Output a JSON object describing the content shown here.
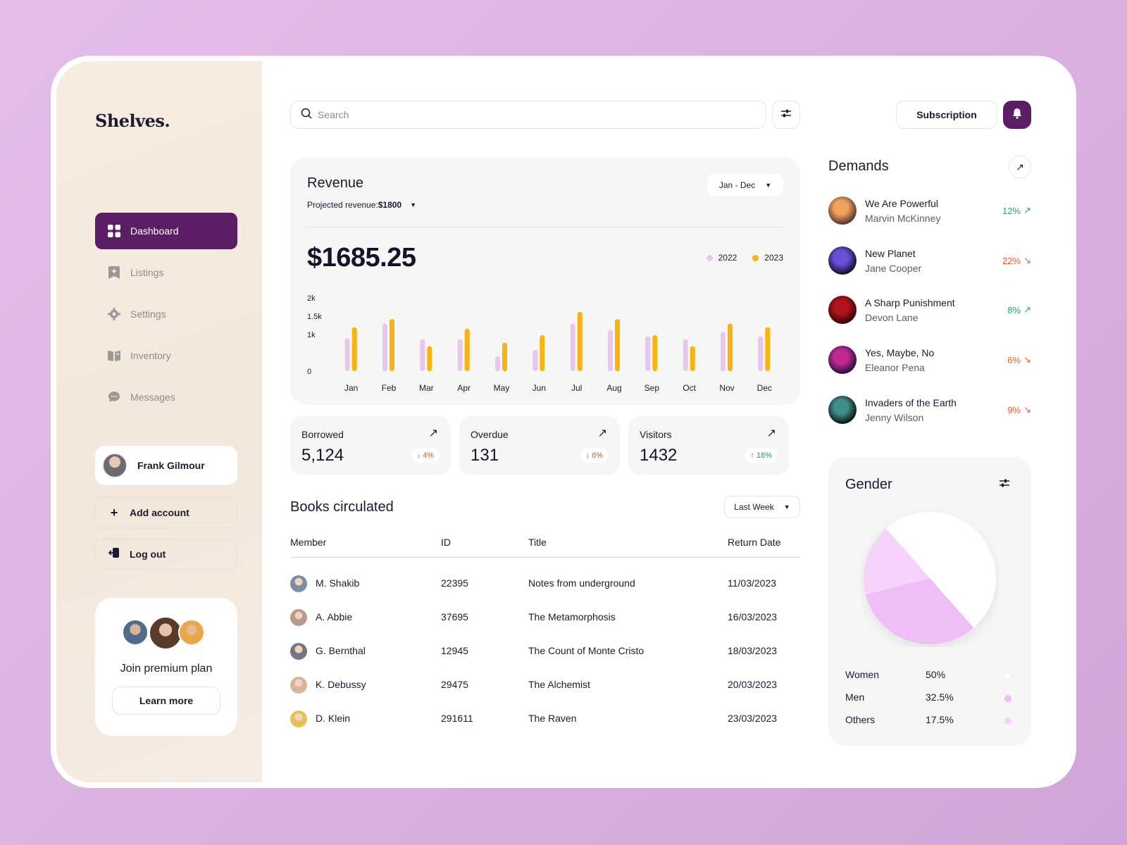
{
  "brand": "Shelves.",
  "nav": [
    {
      "label": "Dashboard",
      "icon": "grid-icon",
      "active": true
    },
    {
      "label": "Listings",
      "icon": "bookmark-plus-icon",
      "active": false
    },
    {
      "label": "Settings",
      "icon": "gear-icon",
      "active": false
    },
    {
      "label": "Inventory",
      "icon": "book-open-icon",
      "active": false
    },
    {
      "label": "Messages",
      "icon": "chat-icon",
      "active": false
    }
  ],
  "user": {
    "name": "Frank Gilmour"
  },
  "add_account": "Add account",
  "logout": "Log out",
  "premium": {
    "title": "Join premium plan",
    "button": "Learn more"
  },
  "search": {
    "placeholder": "Search"
  },
  "subscription": "Subscription",
  "revenue": {
    "title": "Revenue",
    "projected_label": "Projected revenue: ",
    "projected_value": "$1800",
    "range": "Jan - Dec",
    "amount": "$1685.25"
  },
  "chart_data": {
    "type": "bar",
    "categories": [
      "Jan",
      "Feb",
      "Mar",
      "Apr",
      "May",
      "Jun",
      "Jul",
      "Aug",
      "Sep",
      "Oct",
      "Nov",
      "Dec"
    ],
    "series": [
      {
        "name": "2022",
        "color": "#e8c6ee",
        "values": [
          900,
          1300,
          870,
          870,
          400,
          580,
          1300,
          1120,
          950,
          870,
          1070,
          950
        ]
      },
      {
        "name": "2023",
        "color": "#fbb40f",
        "values": [
          1200,
          1420,
          680,
          1160,
          780,
          980,
          1620,
          1420,
          980,
          680,
          1300,
          1200
        ]
      }
    ],
    "y_ticks": [
      "0",
      "1k",
      "1.5k",
      "2k"
    ],
    "y_tick_values": [
      0,
      1000,
      1500,
      2000
    ],
    "ylim": [
      0,
      2000
    ],
    "legend": "top-right"
  },
  "stats": [
    {
      "label": "Borrowed",
      "value": "5,124",
      "change": "4%",
      "dir": "down"
    },
    {
      "label": "Overdue",
      "value": "131",
      "change": "6%",
      "dir": "down"
    },
    {
      "label": "Visitors",
      "value": "1432",
      "change": "18%",
      "dir": "up"
    }
  ],
  "books": {
    "title": "Books circulated",
    "filter": "Last Week",
    "columns": [
      "Member",
      "ID",
      "Title",
      "Return Date"
    ],
    "rows": [
      {
        "member": "M. Shakib",
        "id": "22395",
        "title": "Notes from underground",
        "date": "11/03/2023",
        "avatar": "#7b8ea3"
      },
      {
        "member": "A. Abbie",
        "id": "37695",
        "title": "The Metamorphosis",
        "date": "16/03/2023",
        "avatar": "#b79a8c"
      },
      {
        "member": "G. Bernthal",
        "id": "12945",
        "title": "The Count of Monte Cristo",
        "date": "18/03/2023",
        "avatar": "#6f7884"
      },
      {
        "member": "K. Debussy",
        "id": "29475",
        "title": "The Alchemist",
        "date": "20/03/2023",
        "avatar": "#d9b49a"
      },
      {
        "member": "D. Klein",
        "id": "291611",
        "title": "The Raven",
        "date": "23/03/2023",
        "avatar": "#e3c25a"
      }
    ]
  },
  "demands": {
    "title": "Demands",
    "items": [
      {
        "title": "We Are Powerful",
        "author": "Marvin McKinney",
        "pct": "12%",
        "dir": "up",
        "cover": [
          "#f0a35a",
          "#4a2b2d"
        ]
      },
      {
        "title": "New Planet",
        "author": "Jane Cooper",
        "pct": "22%",
        "dir": "down",
        "cover": [
          "#6a4fd8",
          "#0c0b1a"
        ]
      },
      {
        "title": "A Sharp Punishment",
        "author": "Devon Lane",
        "pct": "8%",
        "dir": "up",
        "cover": [
          "#b1141b",
          "#2a0406"
        ]
      },
      {
        "title": "Yes, Maybe, No",
        "author": "Eleanor Pena",
        "pct": "6%",
        "dir": "down",
        "cover": [
          "#c12a8e",
          "#1d0b3a"
        ]
      },
      {
        "title": "Invaders of the Earth",
        "author": "Jenny Wilson",
        "pct": "9%",
        "dir": "down",
        "cover": [
          "#3f8f8a",
          "#060b0d"
        ]
      }
    ]
  },
  "gender": {
    "title": "Gender",
    "items": [
      {
        "label": "Women",
        "value": "50%",
        "fraction": 0.5,
        "color": "#ffffff"
      },
      {
        "label": "Men",
        "value": "32.5%",
        "fraction": 0.325,
        "color": "#efbef7"
      },
      {
        "label": "Others",
        "value": "17.5%",
        "fraction": 0.175,
        "color": "#f6d3fa"
      }
    ]
  },
  "colors": {
    "accent": "#5b1d63",
    "bar_2022": "#e8c6ee",
    "bar_2023": "#fbb40f",
    "up": "#1cae5e",
    "down": "#ec5f1d"
  }
}
